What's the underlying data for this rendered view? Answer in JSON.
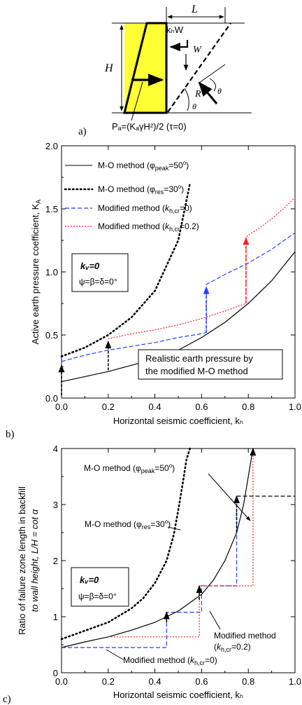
{
  "panel_a": {
    "label": "a)",
    "L": "L",
    "H": "H",
    "khW": "kₕW",
    "W": "W",
    "R": "R",
    "theta": "θ",
    "formula": "Pₐ=(KₐγH²)/2 (τ=0)",
    "colors": {
      "wall_fill": "#ffff33",
      "line": "#000000"
    }
  },
  "chart_data": [
    {
      "type": "line",
      "panel_label": "b)",
      "xlabel": "Horizontal seismic coefficient, kₕ",
      "ylabel": "Active earth pressure coefficient,  K",
      "ylabel_sub": "A",
      "xlim": [
        0,
        1.0
      ],
      "ylim": [
        0,
        2.0
      ],
      "xticks": [
        0.0,
        0.2,
        0.4,
        0.6,
        0.8,
        1.0
      ],
      "xtick_labels": [
        "0.0",
        "0.2",
        "0.4",
        "0.6",
        "0.8",
        "1.0"
      ],
      "yticks": [
        0.0,
        0.5,
        1.0,
        1.5,
        2.0
      ],
      "ytick_labels": [
        "0.0",
        "0.5",
        "1.0",
        "1.5",
        "2.0"
      ],
      "series": [
        {
          "name": "M-O method (φpeak=50°)",
          "style": "solid",
          "color": "#000000",
          "x": [
            0,
            0.1,
            0.2,
            0.3,
            0.4,
            0.5,
            0.6,
            0.7,
            0.8,
            0.9,
            1.0
          ],
          "y": [
            0.13,
            0.17,
            0.21,
            0.26,
            0.31,
            0.38,
            0.48,
            0.6,
            0.75,
            0.93,
            1.16
          ]
        },
        {
          "name": "M-O method (φres=30°)",
          "style": "dotted",
          "color": "#000000",
          "x": [
            0,
            0.1,
            0.2,
            0.3,
            0.4,
            0.5,
            0.55
          ],
          "y": [
            0.33,
            0.4,
            0.5,
            0.64,
            0.85,
            1.25,
            1.7
          ]
        },
        {
          "name": "Modified method (kh,cr=0)",
          "style": "dashed",
          "color": "#1f3fff",
          "x": [
            0,
            0.1,
            0.2,
            0.3,
            0.4,
            0.5,
            0.6,
            0.62,
            0.62,
            0.7,
            0.8,
            0.9,
            1.0
          ],
          "y": [
            0.29,
            0.34,
            0.38,
            0.41,
            0.44,
            0.48,
            0.51,
            0.52,
            0.9,
            0.98,
            1.07,
            1.18,
            1.31
          ]
        },
        {
          "name": "Modified method (kh,cr=0.2)",
          "style": "dashed",
          "color": "#ff2020",
          "x": [
            0.2,
            0.3,
            0.4,
            0.5,
            0.6,
            0.7,
            0.79,
            0.79,
            0.85,
            0.9,
            0.95,
            1.0
          ],
          "y": [
            0.47,
            0.51,
            0.54,
            0.58,
            0.63,
            0.69,
            0.75,
            1.28,
            1.35,
            1.42,
            1.5,
            1.59
          ]
        }
      ],
      "arrows": [
        {
          "x": 0.0,
          "y_from": 0.02,
          "y_to": 0.26,
          "color": "#000000"
        },
        {
          "x": 0.2,
          "y_from": 0.22,
          "y_to": 0.45,
          "color": "#000000"
        },
        {
          "x": 0.62,
          "y_from": 0.52,
          "y_to": 0.88,
          "color": "#1f3fff"
        },
        {
          "x": 0.79,
          "y_from": 0.75,
          "y_to": 1.27,
          "color": "#ff2020"
        }
      ],
      "box_text": {
        "kv": "kᵥ=0",
        "angles": "ψ=β=δ=0°"
      },
      "annotation": [
        "Realistic earth pressure by",
        "the modified M-O method"
      ]
    },
    {
      "type": "line",
      "panel_label": "c)",
      "xlabel": "Horizontal seismic coefficient, kₕ",
      "ylabel_line1": "Ratio of failure zone length in backfill",
      "ylabel_line2": "to wall height,   L/H = cot  α",
      "xlim": [
        0,
        1.0
      ],
      "ylim": [
        0,
        4
      ],
      "xticks": [
        0.0,
        0.2,
        0.4,
        0.6,
        0.8,
        1.0
      ],
      "xtick_labels": [
        "0.0",
        "0.2",
        "0.4",
        "0.6",
        "0.8",
        "1.0"
      ],
      "yticks": [
        0,
        1,
        2,
        3,
        4
      ],
      "ytick_labels": [
        "0",
        "1",
        "2",
        "3",
        "4"
      ],
      "series": [
        {
          "name": "M-O method (φpeak=50°)",
          "style": "solid",
          "color": "#000000",
          "x": [
            0,
            0.1,
            0.2,
            0.3,
            0.4,
            0.5,
            0.6,
            0.65,
            0.7,
            0.75,
            0.78,
            0.8,
            0.82
          ],
          "y": [
            0.45,
            0.55,
            0.64,
            0.76,
            0.9,
            1.1,
            1.4,
            1.65,
            2.0,
            2.5,
            3.0,
            3.5,
            4.0
          ]
        },
        {
          "name": "M-O method (φres=30°)",
          "style": "dotted",
          "color": "#000000",
          "x": [
            0,
            0.1,
            0.2,
            0.3,
            0.35,
            0.4,
            0.45,
            0.48,
            0.5,
            0.52,
            0.535,
            0.55
          ],
          "y": [
            0.6,
            0.75,
            0.9,
            1.15,
            1.33,
            1.6,
            2.0,
            2.45,
            2.9,
            3.4,
            3.8,
            4.0
          ]
        },
        {
          "name": "Modified method (kh,cr=0)",
          "style": "dashed",
          "color": "#1f3fff",
          "x": [
            0,
            0.45,
            0.45,
            0.6,
            0.6,
            0.75,
            0.75
          ],
          "y": [
            0.45,
            0.45,
            1.08,
            1.08,
            1.55,
            1.55,
            3.15
          ]
        },
        {
          "name": "Modified method (kh,cr=0.2)",
          "style": "dashed",
          "color": "#ff2020",
          "x": [
            0.2,
            0.59,
            0.59,
            0.82,
            0.82
          ],
          "y": [
            0.64,
            0.64,
            1.55,
            1.55,
            4.0
          ]
        },
        {
          "name": "",
          "style": "dashed",
          "color": "#000000",
          "x": [
            0.75,
            1.0
          ],
          "y": [
            3.15,
            3.15
          ]
        }
      ],
      "arrows": [
        {
          "x": 0.45,
          "y_from": 0.9,
          "y_to": 1.08,
          "color": "#000000"
        },
        {
          "x": 0.59,
          "y_from": 1.3,
          "y_to": 1.55,
          "color": "#000000"
        },
        {
          "x": 0.75,
          "y_from": 2.5,
          "y_to": 3.15,
          "color": "#000000"
        },
        {
          "x": 0.82,
          "y_from": 3.9,
          "y_to": 4.0,
          "color": "#000000"
        }
      ],
      "box_text": {
        "kv": "kᵥ=0",
        "angles": "ψ=β=δ=0°"
      },
      "labels": {
        "mo_peak": "M-O method (φpeak=50°)",
        "mo_res": "M-O method (φres=30°)",
        "mod_02_line1": "Modified method",
        "mod_02_line2": "(kh,cr=0.2)",
        "mod_0": "Modified method (kh,cr=0)"
      }
    }
  ]
}
